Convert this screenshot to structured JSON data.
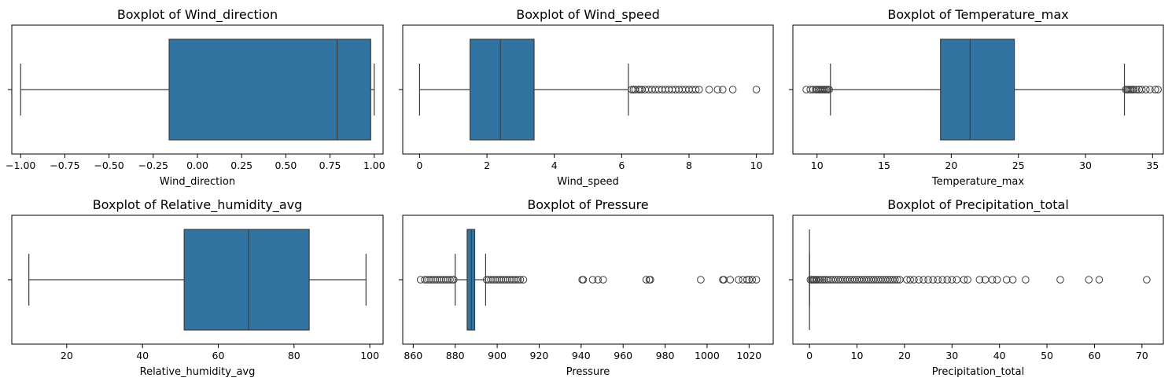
{
  "chart_data": [
    {
      "type": "boxplot",
      "title": "Boxplot of Wind_direction",
      "xlabel": "Wind_direction",
      "xlim": [
        -1.05,
        1.05
      ],
      "ticks": [
        -1.0,
        -0.75,
        -0.5,
        -0.25,
        0.0,
        0.25,
        0.5,
        0.75,
        1.0
      ],
      "tick_labels": [
        "−1.00",
        "−0.75",
        "−0.50",
        "−0.25",
        "0.00",
        "0.25",
        "0.50",
        "0.75",
        "1.00"
      ],
      "whisker_low": -1.0,
      "q1": -0.16,
      "median": 0.79,
      "q3": 0.98,
      "whisker_high": 1.0,
      "outliers": []
    },
    {
      "type": "boxplot",
      "title": "Boxplot of Wind_speed",
      "xlabel": "Wind_speed",
      "xlim": [
        -0.5,
        10.5
      ],
      "ticks": [
        0,
        2,
        4,
        6,
        8,
        10
      ],
      "tick_labels": [
        "0",
        "2",
        "4",
        "6",
        "8",
        "10"
      ],
      "whisker_low": 0.0,
      "q1": 1.5,
      "median": 2.4,
      "q3": 3.4,
      "whisker_high": 6.2,
      "outliers": [
        6.3,
        6.35,
        6.4,
        6.5,
        6.55,
        6.6,
        6.7,
        6.8,
        6.9,
        7.0,
        7.1,
        7.2,
        7.3,
        7.4,
        7.5,
        7.6,
        7.7,
        7.8,
        7.9,
        8.0,
        8.1,
        8.2,
        8.3,
        8.6,
        8.85,
        9.0,
        9.3,
        10.0
      ]
    },
    {
      "type": "boxplot",
      "title": "Boxplot of Temperature_max",
      "xlabel": "Temperature_max",
      "xlim": [
        8.2,
        35.8
      ],
      "ticks": [
        10,
        15,
        20,
        25,
        30,
        35
      ],
      "tick_labels": [
        "10",
        "15",
        "20",
        "25",
        "30",
        "35"
      ],
      "whisker_low": 11.0,
      "q1": 19.2,
      "median": 21.4,
      "q3": 24.7,
      "whisker_high": 32.9,
      "outliers": [
        9.2,
        9.5,
        9.7,
        9.9,
        10.0,
        10.1,
        10.2,
        10.3,
        10.4,
        10.5,
        10.6,
        10.7,
        10.8,
        10.9,
        33.0,
        33.1,
        33.2,
        33.3,
        33.4,
        33.5,
        33.6,
        33.8,
        34.0,
        34.2,
        34.5,
        34.8,
        35.2,
        35.4
      ]
    },
    {
      "type": "boxplot",
      "title": "Boxplot of Relative_humidity_avg",
      "xlabel": "Relative_humidity_avg",
      "xlim": [
        5.5,
        103.5
      ],
      "ticks": [
        20,
        40,
        60,
        80,
        100
      ],
      "tick_labels": [
        "20",
        "40",
        "60",
        "80",
        "100"
      ],
      "whisker_low": 10,
      "q1": 51,
      "median": 68,
      "q3": 84,
      "whisker_high": 99,
      "outliers": []
    },
    {
      "type": "boxplot",
      "title": "Boxplot of Pressure",
      "xlabel": "Pressure",
      "xlim": [
        855.0,
        1031.5
      ],
      "ticks": [
        860,
        880,
        900,
        920,
        940,
        960,
        980,
        1000,
        1020
      ],
      "tick_labels": [
        "860",
        "880",
        "900",
        "920",
        "940",
        "960",
        "980",
        "1000",
        "1020"
      ],
      "whisker_low": 880.0,
      "q1": 885.7,
      "median": 887.7,
      "q3": 889.3,
      "whisker_high": 894.5,
      "outliers": [
        863.5,
        865.5,
        866.5,
        867.5,
        868.5,
        869.5,
        870.5,
        871.5,
        872.5,
        873.5,
        874.5,
        875.5,
        876.5,
        877.5,
        878.5,
        879.3,
        895.0,
        896.0,
        897.0,
        898.0,
        899.0,
        900.0,
        901.0,
        902.0,
        903.0,
        904.0,
        905.0,
        906.0,
        907.0,
        908.0,
        909.0,
        910.0,
        911.0,
        912.5,
        940.5,
        941.0,
        945.5,
        948.0,
        950.5,
        971.0,
        972.5,
        973.0,
        997.0,
        1007.5,
        1008.0,
        1011.0,
        1015.0,
        1017.0,
        1019.0,
        1020.0,
        1021.5,
        1023.5
      ]
    },
    {
      "type": "boxplot",
      "title": "Boxplot of Precipitation_total",
      "xlabel": "Precipitation_total",
      "xlim": [
        -3.5,
        74.5
      ],
      "ticks": [
        0,
        10,
        20,
        30,
        40,
        50,
        60,
        70
      ],
      "tick_labels": [
        "0",
        "10",
        "20",
        "30",
        "40",
        "50",
        "60",
        "70"
      ],
      "whisker_low": 0.0,
      "q1": 0.0,
      "median": 0.0,
      "q3": 0.0,
      "whisker_high": 0.0,
      "outliers": [
        0.2,
        0.5,
        0.8,
        1.0,
        1.3,
        1.6,
        2.0,
        2.4,
        2.8,
        3.2,
        3.6,
        4.0,
        4.5,
        5.0,
        5.5,
        6.0,
        6.5,
        7.0,
        7.5,
        8.0,
        8.5,
        9.0,
        9.5,
        10.0,
        10.5,
        11.0,
        11.5,
        12.0,
        12.5,
        13.0,
        13.5,
        14.0,
        14.5,
        15.0,
        15.5,
        16.0,
        16.5,
        17.0,
        17.5,
        18.0,
        18.5,
        19.0,
        20.5,
        21.2,
        22.0,
        23.0,
        24.0,
        25.0,
        26.0,
        27.0,
        28.0,
        29.0,
        30.0,
        31.0,
        32.5,
        33.3,
        35.8,
        37.0,
        38.5,
        39.5,
        41.5,
        42.8,
        45.5,
        52.8,
        58.8,
        61.0,
        71.0
      ]
    }
  ],
  "colors": {
    "box_fill": "#3274a1",
    "line": "#3d3d3d",
    "axes": "#000000"
  }
}
